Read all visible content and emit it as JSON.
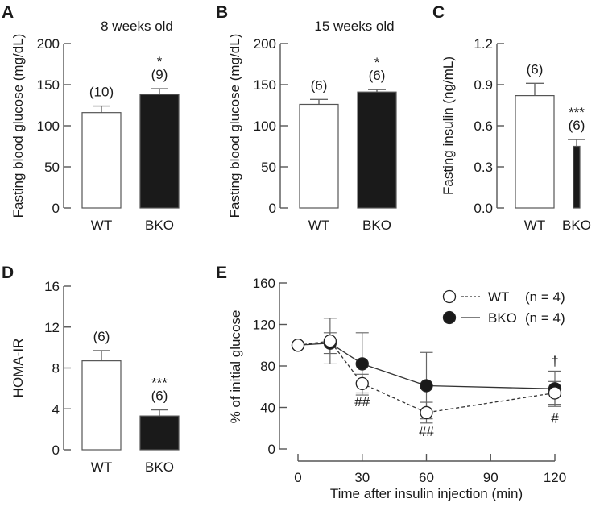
{
  "colors": {
    "wt": "#ffffff",
    "bko": "#1a1a1a",
    "axis": "#555555",
    "error": "#666666"
  },
  "chart_data": [
    {
      "panel": "A",
      "type": "bar",
      "title": "8 weeks old",
      "ylabel": "Fasting blood glucose (mg/dL)",
      "ylim": [
        0,
        200
      ],
      "yticks": [
        "0",
        "50",
        "100",
        "150",
        "200"
      ],
      "ytick_values": [
        0,
        50,
        100,
        150,
        200
      ],
      "categories": [
        "WT",
        "BKO"
      ],
      "values": [
        116,
        138
      ],
      "errors": [
        8,
        7
      ],
      "n_labels": [
        "(10)",
        "(9)"
      ],
      "significance": [
        "",
        "*"
      ]
    },
    {
      "panel": "B",
      "type": "bar",
      "title": "15 weeks old",
      "ylabel": "Fasting blood glucose (mg/dL)",
      "ylim": [
        0,
        200
      ],
      "yticks": [
        "0",
        "50",
        "100",
        "150",
        "200"
      ],
      "ytick_values": [
        0,
        50,
        100,
        150,
        200
      ],
      "categories": [
        "WT",
        "BKO"
      ],
      "values": [
        126,
        141
      ],
      "errors": [
        6,
        3
      ],
      "n_labels": [
        "(6)",
        "(6)"
      ],
      "significance": [
        "",
        "*"
      ]
    },
    {
      "panel": "C",
      "type": "bar",
      "title": "",
      "ylabel": "Fasting insulin (ng/mL)",
      "ylim": [
        0,
        1.2
      ],
      "yticks": [
        "0.0",
        "0.3",
        "0.6",
        "0.9",
        "1.2"
      ],
      "ytick_values": [
        0,
        0.3,
        0.6,
        0.9,
        1.2
      ],
      "categories": [
        "WT",
        "BKO"
      ],
      "values": [
        0.82,
        0.45
      ],
      "errors": [
        0.09,
        0.05
      ],
      "n_labels": [
        "(6)",
        "(6)"
      ],
      "significance": [
        "",
        "***"
      ]
    },
    {
      "panel": "D",
      "type": "bar",
      "title": "",
      "ylabel": "HOMA-IR",
      "ylim": [
        0,
        16
      ],
      "yticks": [
        "0",
        "4",
        "8",
        "12",
        "16"
      ],
      "ytick_values": [
        0,
        4,
        8,
        12,
        16
      ],
      "categories": [
        "WT",
        "BKO"
      ],
      "values": [
        8.7,
        3.3
      ],
      "errors": [
        1.0,
        0.6
      ],
      "n_labels": [
        "(6)",
        "(6)"
      ],
      "significance": [
        "",
        "***"
      ]
    },
    {
      "panel": "E",
      "type": "line",
      "title": "",
      "xlabel": "Time after insulin injection (min)",
      "ylabel": "% of initial glucose",
      "xlim": [
        0,
        120
      ],
      "xticks": [
        "0",
        "30",
        "60",
        "90",
        "120"
      ],
      "xtick_values": [
        0,
        30,
        60,
        90,
        120
      ],
      "ylim": [
        0,
        160
      ],
      "yticks": [
        "0",
        "40",
        "80",
        "120",
        "160"
      ],
      "ytick_values": [
        0,
        40,
        80,
        120,
        160
      ],
      "x": [
        0,
        15,
        30,
        60,
        120
      ],
      "series": [
        {
          "name": "WT",
          "n_label": "(n = 4)",
          "style": "dashed-open",
          "values": [
            100,
            104,
            63,
            35,
            54
          ],
          "errors": [
            0,
            22,
            9,
            10,
            11
          ]
        },
        {
          "name": "BKO",
          "n_label": "(n = 4)",
          "style": "solid-filled",
          "values": [
            100,
            102,
            82,
            61,
            58
          ],
          "errors": [
            0,
            10,
            30,
            32,
            17
          ]
        }
      ],
      "annotations": [
        {
          "x": 30,
          "y": 46,
          "text": "##"
        },
        {
          "x": 60,
          "y": 17,
          "text": "##"
        },
        {
          "x": 120,
          "y": 30,
          "text": "#"
        },
        {
          "x": 120,
          "y": 85,
          "text": "†"
        }
      ],
      "legend_position": "top-right"
    }
  ]
}
